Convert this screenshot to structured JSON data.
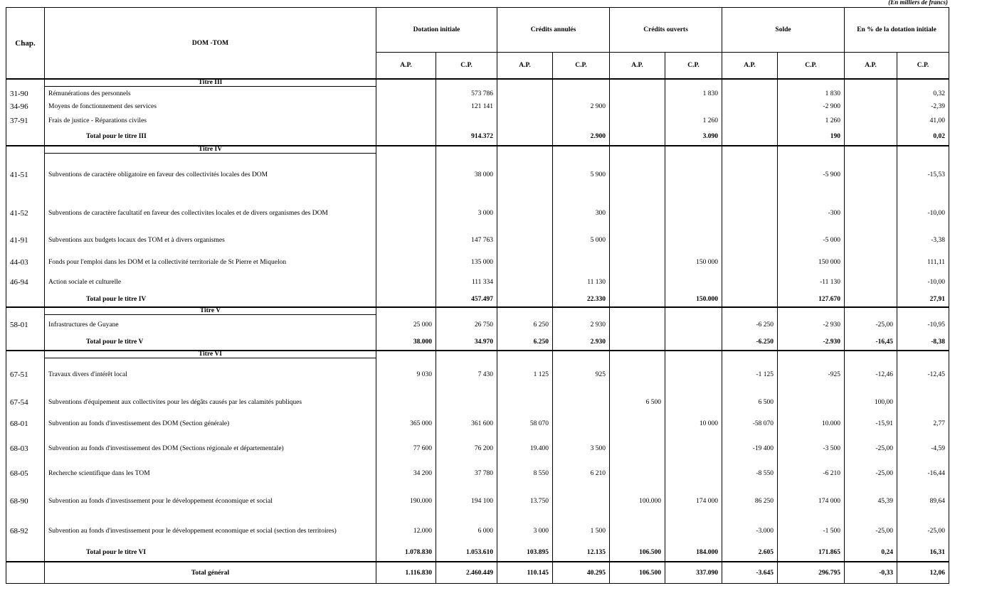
{
  "note": "(En milliers de francs)",
  "table": {
    "header": {
      "chap": "Chap.",
      "label": "DOM -TOM",
      "groups": [
        "Dotation initiale",
        "Crédits annulés",
        "Crédits ouverts",
        "Solde",
        "En % de la dotation initiale"
      ],
      "subheaders": [
        "A.P.",
        "C.P.",
        "A.P.",
        "C.P.",
        "A.P.",
        "C.P.",
        "A.P.",
        "C.P.",
        "A.P.",
        "C.P."
      ]
    },
    "sections": [
      {
        "title": "Titre III",
        "rows": [
          {
            "chap": "31-90",
            "label": "Rémunérations des personnels",
            "cells": [
              null,
              "573 786",
              null,
              null,
              null,
              "1 830",
              null,
              "1 830",
              null,
              "0,32"
            ]
          },
          {
            "chap": "34-96",
            "label": "Moyens de fonctionnement des services",
            "cells": [
              null,
              "121 141",
              null,
              "2 900",
              null,
              null,
              null,
              "-2 900",
              null,
              "-2,39"
            ]
          },
          {
            "chap": "37-91",
            "label": "Frais de justice - Réparations civiles",
            "cells": [
              null,
              null,
              null,
              null,
              null,
              "1 260",
              null,
              "1 260",
              null,
              "41,00"
            ]
          }
        ],
        "total": {
          "label": "Total pour le titre III",
          "cells": [
            null,
            "914.372",
            null,
            "2.900",
            null,
            "3.090",
            null,
            "190",
            null,
            "0,02"
          ]
        }
      },
      {
        "title": "Titre IV",
        "rows": [
          {
            "chap": "41-51",
            "label": "Subventions de caractère obligatoire en faveur des collectivités locales des DOM",
            "cells": [
              null,
              "38 000",
              null,
              "5 900",
              null,
              null,
              null,
              "-5 900",
              null,
              "-15,53"
            ]
          },
          {
            "chap": "41-52",
            "label": "Subventions de caractère facultatif en faveur des collectivites locales et de divers organismes des DOM",
            "cells": [
              null,
              "3 000",
              null,
              "300",
              null,
              null,
              null,
              "-300",
              null,
              "-10,00"
            ]
          },
          {
            "chap": "41-91",
            "label": "Subventions aux budgets locaux des TOM et à divers organismes",
            "cells": [
              null,
              "147 763",
              null,
              "5 000",
              null,
              null,
              null,
              "-5 000",
              null,
              "-3,38"
            ]
          },
          {
            "chap": "44-03",
            "label": "Fonds pour l'emploi dans les DOM et la collectivité territoriale de St Pierre et Miquelon",
            "cells": [
              null,
              "135 000",
              null,
              null,
              null,
              "150 000",
              null,
              "150 000",
              null,
              "111,11"
            ]
          },
          {
            "chap": "46-94",
            "label": "Action sociale et culturelle",
            "cells": [
              null,
              "111 334",
              null,
              "11 130",
              null,
              null,
              null,
              "-11 130",
              null,
              "-10,00"
            ]
          }
        ],
        "total": {
          "label": "Total pour le titre IV",
          "cells": [
            null,
            "457.497",
            null,
            "22.330",
            null,
            "150.000",
            null,
            "127.670",
            null,
            "27,91"
          ]
        }
      },
      {
        "title": "Titre V",
        "rows": [
          {
            "chap": "58-01",
            "label": "Infrastructures de Guyane",
            "cells": [
              "25 000",
              "26 750",
              "6 250",
              "2 930",
              null,
              null,
              "-6 250",
              "-2 930",
              "-25,00",
              "-10,95"
            ]
          }
        ],
        "total": {
          "label": "Total pour le titre  V",
          "cells": [
            "38.000",
            "34.970",
            "6.250",
            "2.930",
            null,
            null,
            "-6.250",
            "-2.930",
            "-16,45",
            "-8,38"
          ]
        }
      },
      {
        "title": "Titre VI",
        "rows": [
          {
            "chap": "67-51",
            "label": "Travaux divers d'intérêt local",
            "cells": [
              "9 030",
              "7 430",
              "1 125",
              "925",
              null,
              null,
              "-1 125",
              "-925",
              "-12,46",
              "-12,45"
            ]
          },
          {
            "chap": "67-54",
            "label": "Subventions d'équipement aux collectivites pour les dégâts causés par les calamités publiques",
            "cells": [
              null,
              null,
              null,
              null,
              "6 500",
              null,
              "6 500",
              null,
              "100,00",
              null
            ]
          },
          {
            "chap": "68-01",
            "label": "Subvention au fonds d'investissement des DOM (Section générale)",
            "cells": [
              "365 000",
              "361 600",
              "58 070",
              null,
              null,
              "10 000",
              "-58 070",
              "10.000",
              "-15,91",
              "2,77"
            ]
          },
          {
            "chap": "68-03",
            "label": "Subvention au fonds d'investissement des DOM (Sections régionale et départementale)",
            "cells": [
              "77 600",
              "76 200",
              "19.400",
              "3 500",
              null,
              null,
              "-19 400",
              "-3 500",
              "-25,00",
              "-4,59"
            ]
          },
          {
            "chap": "68-05",
            "label": "Recherche scientifique dans les TOM",
            "cells": [
              "34 200",
              "37 780",
              "8 550",
              "6 210",
              null,
              null,
              "-8 550",
              "-6 210",
              "-25,00",
              "-16,44"
            ]
          },
          {
            "chap": "68-90",
            "label": "Subvention au fonds d'investissement pour le développement économique et social",
            "cells": [
              "190.000",
              "194 100",
              "13.750",
              null,
              "100.000",
              "174 000",
              "86 250",
              "174 000",
              "45,39",
              "89,64"
            ]
          },
          {
            "chap": "68-92",
            "label": "Subvention au fonds d'investissement pour le développement economique et social (section des territoires)",
            "cells": [
              "12.000",
              "6 000",
              "3 000",
              "1 500",
              null,
              null,
              "-3.000",
              "-1 500",
              "-25,00",
              "-25,00"
            ]
          }
        ],
        "total": {
          "label": "Total pour le titre  VI",
          "cells": [
            "1.078.830",
            "1.053.610",
            "103.895",
            "12.135",
            "106.500",
            "184.000",
            "2.605",
            "171.865",
            "0,24",
            "16,31"
          ]
        }
      }
    ],
    "grand_total": {
      "label": "Total général",
      "cells": [
        "1.116.830",
        "2.460.449",
        "110.145",
        "40.295",
        "106.500",
        "337.090",
        "-3.645",
        "296.795",
        "-0,33",
        "12,06"
      ]
    }
  }
}
